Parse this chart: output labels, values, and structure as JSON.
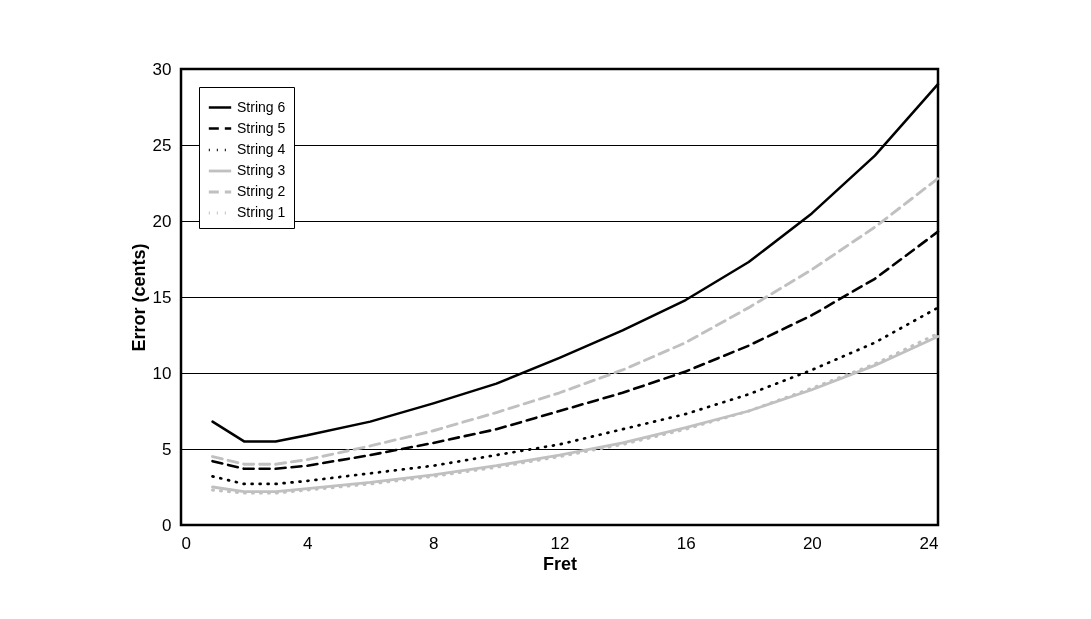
{
  "chart_data": {
    "type": "line",
    "xlabel": "Fret",
    "ylabel": "Error (cents)",
    "x": [
      1,
      2,
      3,
      4,
      6,
      8,
      10,
      12,
      14,
      16,
      18,
      20,
      22,
      24
    ],
    "xlim": [
      0,
      24
    ],
    "xticks": [
      0,
      4,
      8,
      12,
      16,
      20,
      24
    ],
    "ylim": [
      0,
      30
    ],
    "yticks": [
      0,
      5,
      10,
      15,
      20,
      25,
      30
    ],
    "grid": "y",
    "legend": "top left",
    "marker": "none",
    "series": [
      {
        "name": "String 6",
        "color": "#000000",
        "line_style": "solid",
        "values": [
          6.8,
          5.5,
          5.5,
          5.9,
          6.8,
          8.0,
          9.3,
          11.0,
          12.8,
          14.8,
          17.3,
          20.5,
          24.3,
          29.0
        ]
      },
      {
        "name": "String 5",
        "color": "#000000",
        "line_style": "dashed",
        "values": [
          4.2,
          3.7,
          3.7,
          3.9,
          4.6,
          5.4,
          6.3,
          7.5,
          8.7,
          10.1,
          11.8,
          13.8,
          16.2,
          19.3
        ]
      },
      {
        "name": "String 4",
        "color": "#000000",
        "line_style": "dotted",
        "values": [
          3.2,
          2.7,
          2.7,
          2.9,
          3.4,
          3.9,
          4.6,
          5.3,
          6.3,
          7.3,
          8.6,
          10.2,
          12.0,
          14.3
        ]
      },
      {
        "name": "String 3",
        "color": "#c0c0c0",
        "line_style": "solid",
        "values": [
          2.5,
          2.2,
          2.2,
          2.4,
          2.8,
          3.3,
          3.9,
          4.6,
          5.4,
          6.4,
          7.5,
          8.9,
          10.5,
          12.4
        ]
      },
      {
        "name": "String 2",
        "color": "#c0c0c0",
        "line_style": "dashed",
        "values": [
          4.5,
          4.0,
          4.0,
          4.3,
          5.2,
          6.2,
          7.4,
          8.7,
          10.2,
          12.0,
          14.3,
          16.8,
          19.6,
          22.8
        ]
      },
      {
        "name": "String 1",
        "color": "#c0c0c0",
        "line_style": "dotted",
        "values": [
          2.3,
          2.1,
          2.1,
          2.3,
          2.7,
          3.2,
          3.8,
          4.5,
          5.3,
          6.3,
          7.5,
          9.0,
          10.6,
          12.6
        ]
      }
    ]
  }
}
